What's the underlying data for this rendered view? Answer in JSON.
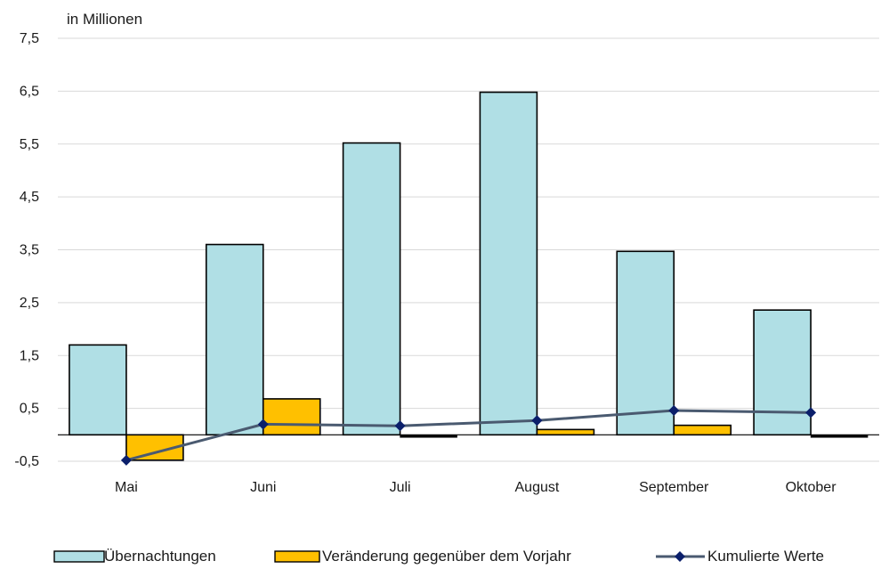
{
  "chart_data": {
    "type": "bar",
    "unit_label": "in Millionen",
    "categories": [
      "Mai",
      "Juni",
      "Juli",
      "August",
      "September",
      "Oktober"
    ],
    "y_ticks": [
      -0.5,
      0.5,
      1.5,
      2.5,
      3.5,
      4.5,
      5.5,
      6.5,
      7.5
    ],
    "y_tick_labels": [
      "-0,5",
      "0,5",
      "1,5",
      "2,5",
      "3,5",
      "4,5",
      "5,5",
      "6,5",
      "7,5"
    ],
    "ylim": [
      -0.5,
      7.5
    ],
    "grid": true,
    "legend_position": "bottom",
    "series": [
      {
        "name": "Übernachtungen",
        "type": "bar",
        "values": [
          1.7,
          3.6,
          5.52,
          6.48,
          3.47,
          2.36
        ],
        "color": "#b0dfe5"
      },
      {
        "name": "Veränderung gegenüber dem Vorjahr",
        "type": "bar",
        "values": [
          -0.48,
          0.68,
          -0.03,
          0.1,
          0.18,
          -0.03
        ],
        "color": "#ffc000"
      },
      {
        "name": "Kumulierte Werte",
        "type": "line",
        "values": [
          -0.48,
          0.2,
          0.17,
          0.27,
          0.46,
          0.42
        ],
        "color": "#4a5a70",
        "marker_color": "#0b1f6b"
      }
    ]
  }
}
